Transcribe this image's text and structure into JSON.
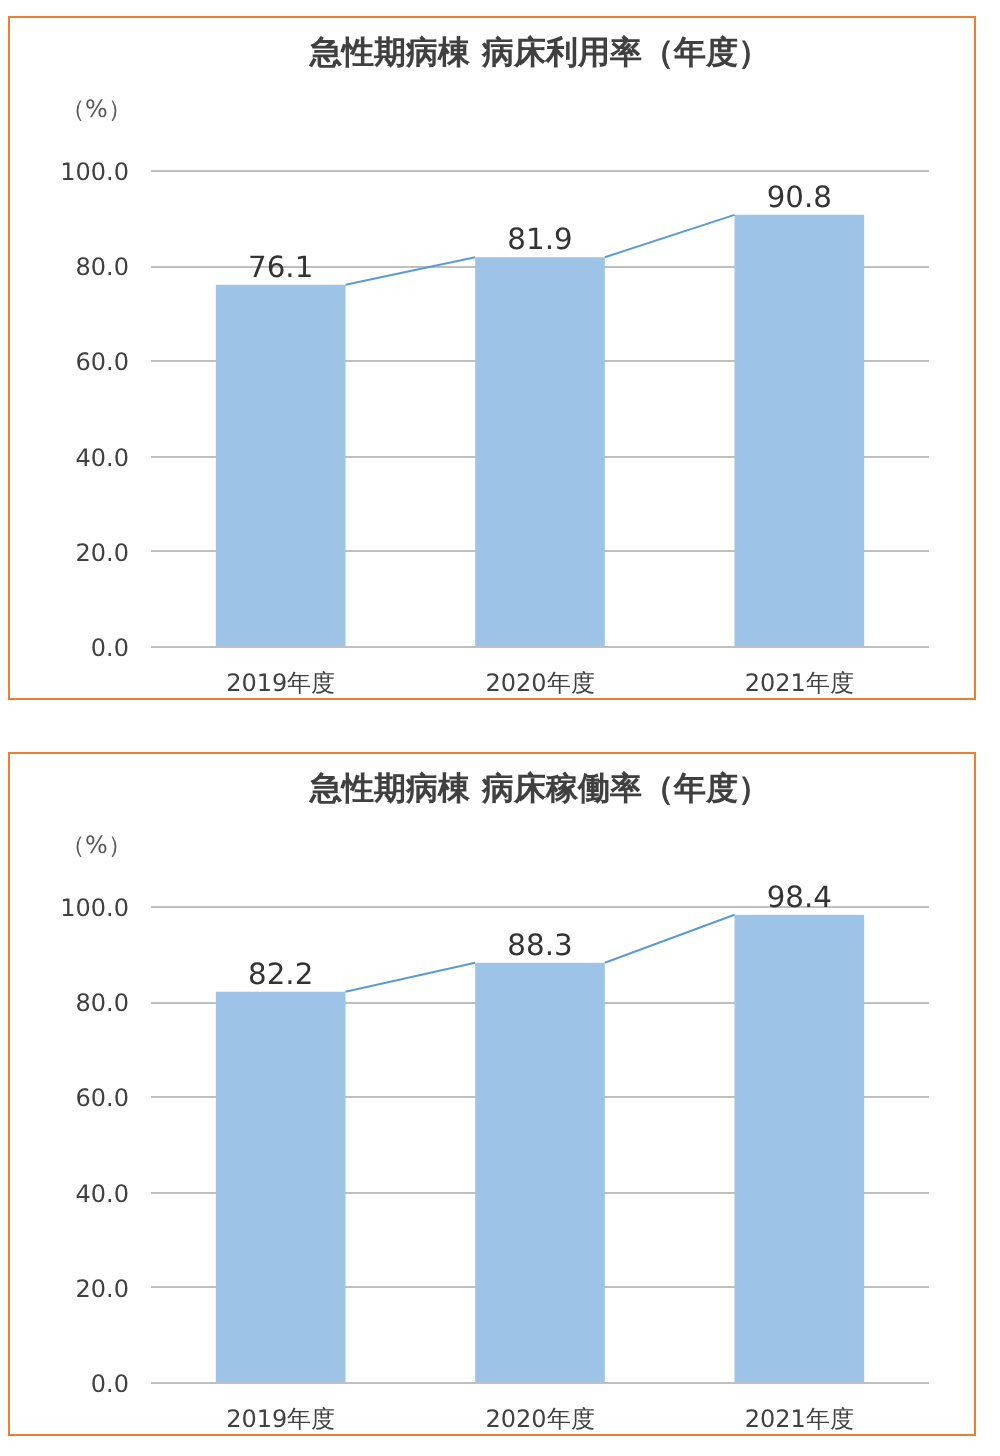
{
  "chart_data": [
    {
      "type": "bar",
      "title": "急性期病棟 病床利用率（年度）",
      "ylabel": "（%）",
      "categories": [
        "2019年度",
        "2020年度",
        "2021年度"
      ],
      "values": [
        76.1,
        81.9,
        90.8
      ],
      "color": "#9dc3e6",
      "ylim": [
        0,
        100
      ],
      "yticks": [
        {
          "value": 0,
          "label": "0.0"
        },
        {
          "value": 20,
          "label": "20.0"
        },
        {
          "value": 40,
          "label": "40.0"
        },
        {
          "value": 60,
          "label": "60.0"
        },
        {
          "value": 80,
          "label": "80.0"
        },
        {
          "value": 100,
          "label": "100.0"
        }
      ],
      "grid": "y",
      "data_labels": true
    },
    {
      "type": "bar",
      "title": "急性期病棟 病床稼働率（年度）",
      "ylabel": "（%）",
      "categories": [
        "2019年度",
        "2020年度",
        "2021年度"
      ],
      "values": [
        82.2,
        88.3,
        98.4
      ],
      "color": "#9dc3e6",
      "ylim": [
        0,
        100
      ],
      "yticks": [
        {
          "value": 0,
          "label": "0.0"
        },
        {
          "value": 20,
          "label": "20.0"
        },
        {
          "value": 40,
          "label": "40.0"
        },
        {
          "value": 60,
          "label": "60.0"
        },
        {
          "value": 80,
          "label": "80.0"
        },
        {
          "value": 100,
          "label": "100.0"
        }
      ],
      "grid": "y",
      "data_labels": true
    }
  ]
}
